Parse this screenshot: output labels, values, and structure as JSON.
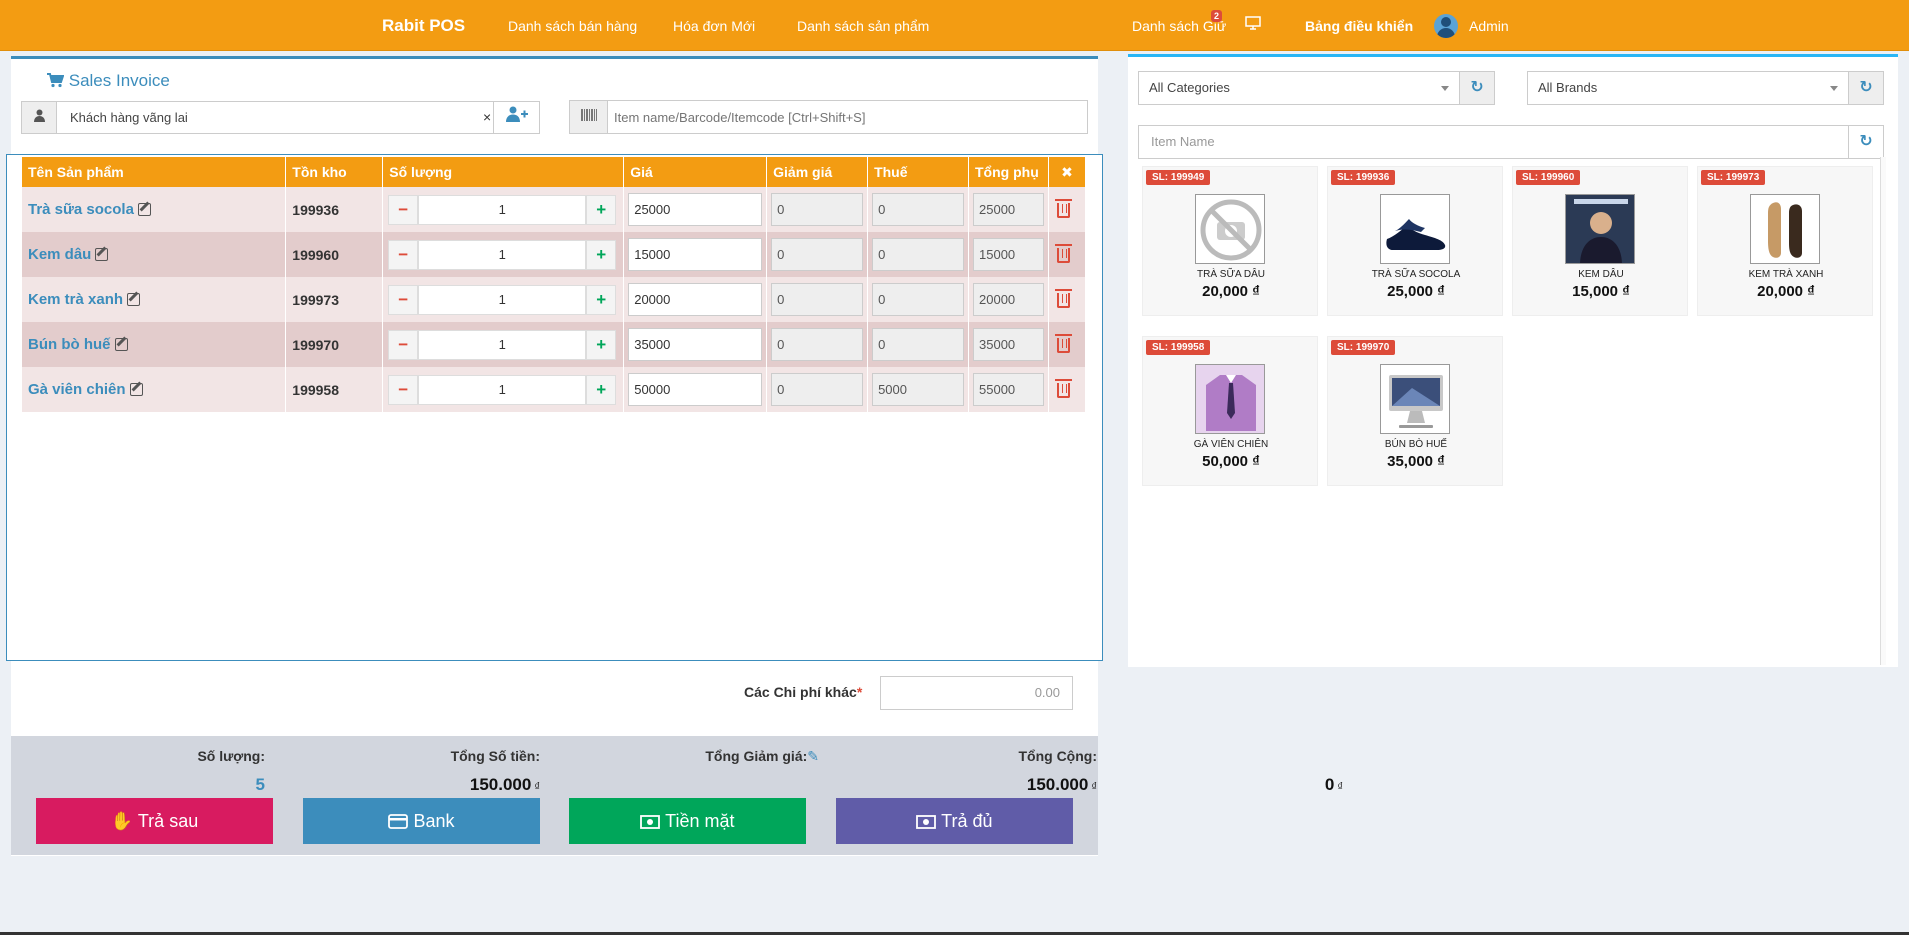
{
  "topbar": {
    "brand": "Rabit POS",
    "nav": [
      "Danh sách bán hàng",
      "Hóa đơn Mới",
      "Danh sách sản phẩm"
    ],
    "hold_list": "Danh sách Giữ",
    "hold_count": "2",
    "dashboard": "Bảng điều khiển",
    "user": "Admin"
  },
  "invoice": {
    "title": "Sales Invoice",
    "customer": "Khách hàng vãng lai",
    "search_placeholder": "Item name/Barcode/Itemcode [Ctrl+Shift+S]",
    "headers": [
      "Tên Sản phẩm",
      "Tồn kho",
      "Số lượng",
      "Giá",
      "Giảm giá",
      "Thuế",
      "Tổng phụ"
    ],
    "rows": [
      {
        "name": "Trà sữa socola",
        "stock": "199936",
        "qty": "1",
        "price": "25000",
        "discount": "0",
        "tax": "0",
        "subtotal": "25000"
      },
      {
        "name": "Kem dâu",
        "stock": "199960",
        "qty": "1",
        "price": "15000",
        "discount": "0",
        "tax": "0",
        "subtotal": "15000"
      },
      {
        "name": "Kem trà xanh",
        "stock": "199973",
        "qty": "1",
        "price": "20000",
        "discount": "0",
        "tax": "0",
        "subtotal": "20000"
      },
      {
        "name": "Bún bò huế",
        "stock": "199970",
        "qty": "1",
        "price": "35000",
        "discount": "0",
        "tax": "0",
        "subtotal": "35000"
      },
      {
        "name": "Gà viên chiên",
        "stock": "199958",
        "qty": "1",
        "price": "50000",
        "discount": "0",
        "tax": "5000",
        "subtotal": "55000"
      }
    ],
    "other_cost_label": "Các Chi phí khác",
    "other_cost_value": "0.00"
  },
  "totals": {
    "qty_label": "Số lượng:",
    "qty_value": "5",
    "amount_label": "Tổng Số tiền:",
    "amount_value": "150.000",
    "discount_label": "Tổng Giảm giá:",
    "discount_value": "0",
    "total_label": "Tổng Cộng:",
    "total_value": "150.000",
    "currency": "₫"
  },
  "pay_buttons": [
    {
      "label": "Trả sau",
      "color": "#d81b60"
    },
    {
      "label": "Bank",
      "color": "#3c8dbc"
    },
    {
      "label": "Tiền mặt",
      "color": "#00a65a"
    },
    {
      "label": "Trả đủ",
      "color": "#605ca8"
    }
  ],
  "catalog": {
    "category_select": "All Categories",
    "brand_select": "All Brands",
    "item_placeholder": "Item Name",
    "products": [
      {
        "stock": "SL: 199949",
        "name": "TRÀ SỮA DÂU",
        "price": "20,000 ₫",
        "image": "no-image-icon"
      },
      {
        "stock": "SL: 199936",
        "name": "TRÀ SỮA SOCOLA",
        "price": "25,000 ₫",
        "image": "shoes-image"
      },
      {
        "stock": "SL: 199960",
        "name": "KEM DÂU",
        "price": "15,000 ₫",
        "image": "book-cover-image"
      },
      {
        "stock": "SL: 199973",
        "name": "KEM TRÀ XANH",
        "price": "20,000 ₫",
        "image": "loafer-image"
      },
      {
        "stock": "SL: 199958",
        "name": "GÀ VIÊN CHIÊN",
        "price": "50,000 ₫",
        "image": "shirt-image"
      },
      {
        "stock": "SL: 199970",
        "name": "BÚN BÒ HUẾ",
        "price": "35,000 ₫",
        "image": "imac-image"
      }
    ]
  }
}
